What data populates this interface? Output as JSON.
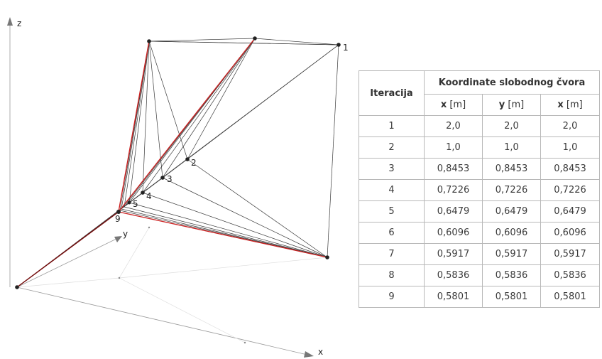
{
  "diagram": {
    "axis_labels": {
      "z": "z",
      "y": "y",
      "x": "x"
    },
    "node_labels": [
      "1",
      "2",
      "3",
      "4",
      "5",
      "9"
    ],
    "colors": {
      "structure": "#333333",
      "final": "#cc2222",
      "axis": "#888888"
    }
  },
  "table": {
    "iter_header": "Iteracija",
    "coord_header": "Koordinate slobodnog čvora",
    "columns": [
      {
        "sym": "x",
        "unit": " [m]"
      },
      {
        "sym": "y",
        "unit": " [m]"
      },
      {
        "sym": "x",
        "unit": " [m]"
      }
    ],
    "rows": [
      [
        "1",
        "2,0",
        "2,0",
        "2,0"
      ],
      [
        "2",
        "1,0",
        "1,0",
        "1,0"
      ],
      [
        "3",
        "0,8453",
        "0,8453",
        "0,8453"
      ],
      [
        "4",
        "0,7226",
        "0,7226",
        "0,7226"
      ],
      [
        "5",
        "0,6479",
        "0,6479",
        "0,6479"
      ],
      [
        "6",
        "0,6096",
        "0,6096",
        "0,6096"
      ],
      [
        "7",
        "0,5917",
        "0,5917",
        "0,5917"
      ],
      [
        "8",
        "0,5836",
        "0,5836",
        "0,5836"
      ],
      [
        "9",
        "0,5801",
        "0,5801",
        "0,5801"
      ]
    ]
  }
}
